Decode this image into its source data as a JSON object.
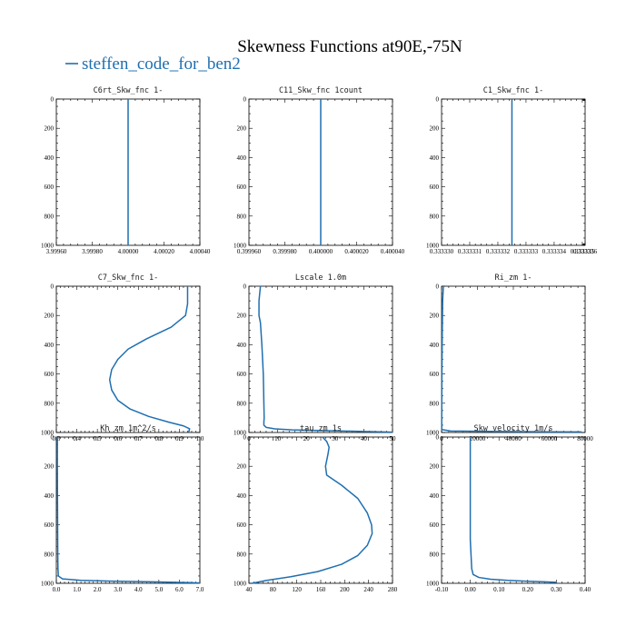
{
  "figure": {
    "title": "Skewness Functions at90E,-75N",
    "legend_label": "steffen_code_for_ben2",
    "line_color": "#1f6fb0"
  },
  "chart_data": [
    {
      "type": "line",
      "title": "C6rt_Skw_fnc   1-",
      "xlim": [
        3.9996,
        4.0004
      ],
      "ylim": [
        0,
        1000
      ],
      "y_inverted": true,
      "x_ticks": [
        {
          "v": 3.9996,
          "label": "3.99960"
        },
        {
          "v": 3.9998,
          "label": "3.99980"
        },
        {
          "v": 4.0,
          "label": "4.00000"
        },
        {
          "v": 4.0002,
          "label": "4.00020"
        },
        {
          "v": 4.0004,
          "label": "4.00040"
        }
      ],
      "y_ticks": [
        {
          "v": 0,
          "label": "0"
        },
        {
          "v": 200,
          "label": "200"
        },
        {
          "v": 400,
          "label": "400"
        },
        {
          "v": 600,
          "label": "600"
        },
        {
          "v": 800,
          "label": "800"
        },
        {
          "v": 1000,
          "label": "1000"
        }
      ],
      "series": [
        {
          "x": [
            4.0,
            4.0
          ],
          "y": [
            0,
            1000
          ]
        }
      ]
    },
    {
      "type": "line",
      "title": "C11_Skw_fnc   1count",
      "xlim": [
        0.39996,
        0.40004
      ],
      "ylim": [
        0,
        1000
      ],
      "y_inverted": true,
      "x_ticks": [
        {
          "v": 0.39996,
          "label": "0.399960"
        },
        {
          "v": 0.39998,
          "label": "0.399980"
        },
        {
          "v": 0.4,
          "label": "0.400000"
        },
        {
          "v": 0.40002,
          "label": "0.400020"
        },
        {
          "v": 0.40004,
          "label": "0.400040"
        }
      ],
      "y_ticks": [
        {
          "v": 0,
          "label": "0"
        },
        {
          "v": 200,
          "label": "200"
        },
        {
          "v": 400,
          "label": "400"
        },
        {
          "v": 600,
          "label": "600"
        },
        {
          "v": 800,
          "label": "800"
        },
        {
          "v": 1000,
          "label": "1000"
        }
      ],
      "series": [
        {
          "x": [
            0.4,
            0.4
          ],
          "y": [
            0,
            1000
          ]
        }
      ]
    },
    {
      "type": "line",
      "title": "C1_Skw_fnc   1-",
      "xlim": [
        0.333331,
        0.3333361
      ],
      "ylim": [
        0,
        1000
      ],
      "y_inverted": true,
      "x_ticks": [
        {
          "v": 0.333331,
          "label": "0.333330"
        },
        {
          "v": 0.333332,
          "label": "0.333331"
        },
        {
          "v": 0.333333,
          "label": "0.333332"
        },
        {
          "v": 0.333334,
          "label": "0.333333"
        },
        {
          "v": 0.333335,
          "label": "0.333334"
        },
        {
          "v": 0.333336,
          "label": "0.333335"
        },
        {
          "v": 0.3333361,
          "label": "0.333336"
        }
      ],
      "y_ticks": [
        {
          "v": 0,
          "label": "0"
        },
        {
          "v": 200,
          "label": "200"
        },
        {
          "v": 400,
          "label": "400"
        },
        {
          "v": 600,
          "label": "600"
        },
        {
          "v": 800,
          "label": "800"
        },
        {
          "v": 1000,
          "label": "1000"
        }
      ],
      "series": [
        {
          "x": [
            0.3333335,
            0.3333335
          ],
          "y": [
            0,
            1000
          ]
        }
      ]
    },
    {
      "type": "line",
      "title": "C7_Skw_fnc   1-",
      "xlim": [
        0.3,
        1.0
      ],
      "ylim": [
        0,
        1000
      ],
      "y_inverted": true,
      "x_ticks": [
        {
          "v": 0.3,
          "label": "0.3"
        },
        {
          "v": 0.4,
          "label": "0.4"
        },
        {
          "v": 0.5,
          "label": "0.5"
        },
        {
          "v": 0.6,
          "label": "0.6"
        },
        {
          "v": 0.7,
          "label": "0.7"
        },
        {
          "v": 0.8,
          "label": "0.8"
        },
        {
          "v": 0.9,
          "label": "0.9"
        },
        {
          "v": 1.0,
          "label": "1.0"
        }
      ],
      "y_ticks": [
        {
          "v": 0,
          "label": "0"
        },
        {
          "v": 200,
          "label": "200"
        },
        {
          "v": 400,
          "label": "400"
        },
        {
          "v": 600,
          "label": "600"
        },
        {
          "v": 800,
          "label": "800"
        },
        {
          "v": 1000,
          "label": "1000"
        }
      ],
      "series": [
        {
          "x": [
            0.94,
            0.94,
            0.93,
            0.86,
            0.74,
            0.65,
            0.6,
            0.57,
            0.56,
            0.57,
            0.6,
            0.66,
            0.75,
            0.85,
            0.92,
            0.95,
            0.945
          ],
          "y": [
            0,
            120,
            200,
            280,
            360,
            430,
            500,
            570,
            640,
            710,
            780,
            840,
            890,
            930,
            955,
            975,
            1000
          ]
        }
      ]
    },
    {
      "type": "line",
      "title": "Lscale   1.0m",
      "xlim": [
        0,
        50
      ],
      "ylim": [
        0,
        1000
      ],
      "y_inverted": true,
      "x_ticks": [
        {
          "v": 0,
          "label": "0"
        },
        {
          "v": 10,
          "label": "10"
        },
        {
          "v": 20,
          "label": "20"
        },
        {
          "v": 30,
          "label": "30"
        },
        {
          "v": 40,
          "label": "40"
        },
        {
          "v": 50,
          "label": "50"
        }
      ],
      "y_ticks": [
        {
          "v": 0,
          "label": "0"
        },
        {
          "v": 200,
          "label": "200"
        },
        {
          "v": 400,
          "label": "400"
        },
        {
          "v": 600,
          "label": "600"
        },
        {
          "v": 800,
          "label": "800"
        },
        {
          "v": 1000,
          "label": "1000"
        }
      ],
      "series": [
        {
          "x": [
            4,
            3.5,
            3.5,
            4,
            4.5,
            5,
            5.2,
            5.3,
            5.2,
            5.2,
            6,
            9,
            15,
            25,
            35,
            45,
            50
          ],
          "y": [
            0,
            100,
            200,
            250,
            400,
            600,
            800,
            900,
            930,
            950,
            965,
            975,
            982,
            987,
            991,
            995,
            998
          ]
        }
      ]
    },
    {
      "type": "line",
      "title": "Ri_zm   1-",
      "xlim": [
        0,
        80000
      ],
      "ylim": [
        0,
        1000
      ],
      "y_inverted": true,
      "x_ticks": [
        {
          "v": 0,
          "label": "0"
        },
        {
          "v": 20000,
          "label": "20000"
        },
        {
          "v": 40000,
          "label": "40000"
        },
        {
          "v": 60000,
          "label": "60000"
        },
        {
          "v": 80000,
          "label": "80000"
        }
      ],
      "y_ticks": [
        {
          "v": 0,
          "label": "0"
        },
        {
          "v": 200,
          "label": "200"
        },
        {
          "v": 400,
          "label": "400"
        },
        {
          "v": 600,
          "label": "600"
        },
        {
          "v": 800,
          "label": "800"
        },
        {
          "v": 1000,
          "label": "1000"
        }
      ],
      "series": [
        {
          "x": [
            1000,
            600,
            400,
            200,
            100,
            100,
            5000,
            30000,
            60000,
            78000
          ],
          "y": [
            0,
            100,
            300,
            600,
            900,
            980,
            990,
            993,
            995,
            996
          ]
        }
      ]
    },
    {
      "type": "line",
      "title": "Kh_zm   1m^2/s",
      "xlim": [
        0,
        7
      ],
      "ylim": [
        0,
        1000
      ],
      "y_inverted": true,
      "x_ticks": [
        {
          "v": 0,
          "label": "0.0"
        },
        {
          "v": 1,
          "label": "1.0"
        },
        {
          "v": 2,
          "label": "2.0"
        },
        {
          "v": 3,
          "label": "3.0"
        },
        {
          "v": 4,
          "label": "4.0"
        },
        {
          "v": 5,
          "label": "5.0"
        },
        {
          "v": 6,
          "label": "6.0"
        },
        {
          "v": 7,
          "label": "7.0"
        }
      ],
      "y_ticks": [
        {
          "v": 0,
          "label": "0"
        },
        {
          "v": 200,
          "label": "200"
        },
        {
          "v": 400,
          "label": "400"
        },
        {
          "v": 600,
          "label": "600"
        },
        {
          "v": 800,
          "label": "800"
        },
        {
          "v": 1000,
          "label": "1000"
        }
      ],
      "series": [
        {
          "x": [
            0.05,
            0.05,
            0.06,
            0.07,
            0.08,
            0.1,
            0.3,
            1.2,
            3,
            5,
            6.5,
            7
          ],
          "y": [
            0,
            200,
            500,
            800,
            900,
            950,
            970,
            980,
            986,
            991,
            995,
            998
          ]
        }
      ]
    },
    {
      "type": "line",
      "title": "tau_zm   1s",
      "xlim": [
        40,
        280
      ],
      "ylim": [
        0,
        1000
      ],
      "y_inverted": true,
      "x_ticks": [
        {
          "v": 40,
          "label": "40"
        },
        {
          "v": 80,
          "label": "80"
        },
        {
          "v": 120,
          "label": "120"
        },
        {
          "v": 160,
          "label": "160"
        },
        {
          "v": 200,
          "label": "200"
        },
        {
          "v": 240,
          "label": "240"
        },
        {
          "v": 280,
          "label": "280"
        }
      ],
      "y_ticks": [
        {
          "v": 0,
          "label": "0"
        },
        {
          "v": 200,
          "label": "200"
        },
        {
          "v": 400,
          "label": "400"
        },
        {
          "v": 600,
          "label": "600"
        },
        {
          "v": 800,
          "label": "800"
        },
        {
          "v": 1000,
          "label": "1000"
        }
      ],
      "series": [
        {
          "x": [
            163,
            170,
            174,
            172,
            168,
            170,
            195,
            222,
            238,
            245,
            246,
            238,
            222,
            195,
            155,
            110,
            70,
            45
          ],
          "y": [
            0,
            30,
            70,
            120,
            200,
            260,
            330,
            420,
            520,
            600,
            660,
            740,
            810,
            870,
            920,
            955,
            980,
            1000
          ]
        }
      ]
    },
    {
      "type": "line",
      "title": "Skw_velocity   1m/s",
      "xlim": [
        -0.1,
        0.4
      ],
      "ylim": [
        0,
        1000
      ],
      "y_inverted": true,
      "x_ticks": [
        {
          "v": -0.1,
          "label": "-0.10"
        },
        {
          "v": 0,
          "label": "0.00"
        },
        {
          "v": 0.1,
          "label": "0.10"
        },
        {
          "v": 0.2,
          "label": "0.20"
        },
        {
          "v": 0.3,
          "label": "0.30"
        },
        {
          "v": 0.4,
          "label": "0.40"
        }
      ],
      "y_ticks": [
        {
          "v": 0,
          "label": "0"
        },
        {
          "v": 200,
          "label": "200"
        },
        {
          "v": 400,
          "label": "400"
        },
        {
          "v": 600,
          "label": "600"
        },
        {
          "v": 800,
          "label": "800"
        },
        {
          "v": 1000,
          "label": "1000"
        }
      ],
      "series": [
        {
          "x": [
            0,
            0,
            0,
            0.005,
            0.01,
            0.03,
            0.07,
            0.13,
            0.2,
            0.26,
            0.3
          ],
          "y": [
            0,
            300,
            700,
            900,
            940,
            960,
            972,
            980,
            986,
            990,
            993
          ]
        }
      ]
    }
  ]
}
